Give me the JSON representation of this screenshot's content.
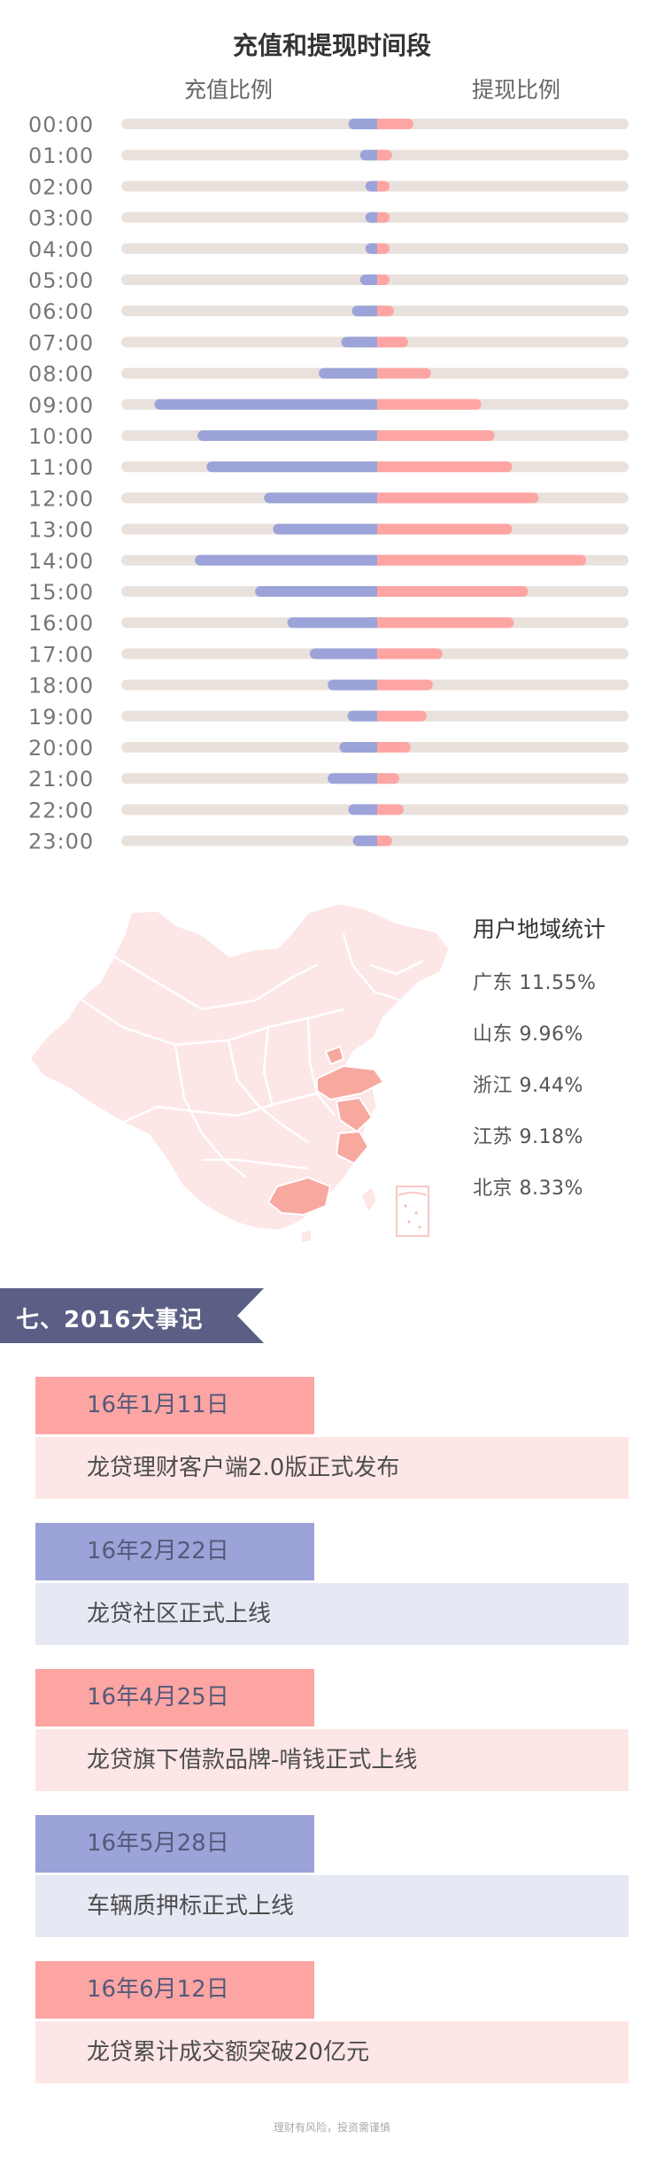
{
  "chart_data": {
    "type": "bar",
    "title": "充值和提现时间段",
    "categories": [
      "00:00",
      "01:00",
      "02:00",
      "03:00",
      "04:00",
      "05:00",
      "06:00",
      "07:00",
      "08:00",
      "09:00",
      "10:00",
      "11:00",
      "12:00",
      "13:00",
      "14:00",
      "15:00",
      "16:00",
      "17:00",
      "18:00",
      "19:00",
      "20:00",
      "21:00",
      "22:00",
      "23:00"
    ],
    "series": [
      {
        "name": "充值比例",
        "color": "#9ba3d8",
        "values": [
          32,
          19,
          13,
          13,
          13,
          19,
          28,
          40,
          65,
          248,
          200,
          190,
          126,
          116,
          203,
          136,
          100,
          75,
          55,
          33,
          42,
          55,
          32,
          27
        ]
      },
      {
        "name": "提现比例",
        "color": "#fda5a3",
        "values": [
          41,
          17,
          14,
          14,
          14,
          14,
          19,
          35,
          61,
          118,
          133,
          153,
          183,
          153,
          237,
          171,
          155,
          74,
          63,
          56,
          38,
          25,
          30,
          17
        ]
      }
    ],
    "track_color": "#e9e1dc",
    "ylim": [
      0,
      285
    ],
    "grid": false,
    "legend": "top"
  },
  "regions": {
    "title": "用户地域统计",
    "items": [
      {
        "name": "广东",
        "value": "11.55%"
      },
      {
        "name": "山东",
        "value": "9.96%"
      },
      {
        "name": "浙江",
        "value": "9.44%"
      },
      {
        "name": "江苏",
        "value": "9.18%"
      },
      {
        "name": "北京",
        "value": "8.33%"
      }
    ]
  },
  "colors": {
    "map_base": "#fde6e6",
    "map_highlight": "#f7a9a0",
    "header_bg": "#5b5f85"
  },
  "events_section": {
    "title": "七、2016大事记",
    "events": [
      {
        "date": "16年1月11日",
        "desc": "龙贷理财客户端2.0版正式发布",
        "theme": "pink"
      },
      {
        "date": "16年2月22日",
        "desc": "龙贷社区正式上线",
        "theme": "blue"
      },
      {
        "date": "16年4月25日",
        "desc": "龙贷旗下借款品牌-啃钱正式上线",
        "theme": "pink"
      },
      {
        "date": "16年5月28日",
        "desc": "车辆质押标正式上线",
        "theme": "blue"
      },
      {
        "date": "16年6月12日",
        "desc": "龙贷累计成交额突破20亿元",
        "theme": "pink"
      }
    ]
  },
  "footer": "理财有风险，投资需谨慎"
}
